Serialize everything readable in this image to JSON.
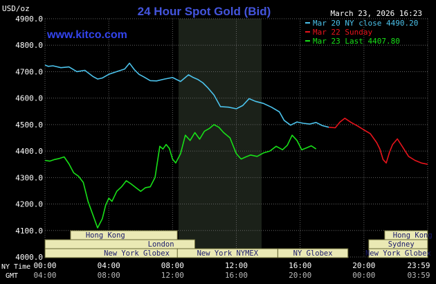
{
  "title": "24 Hour Spot Gold (Bid)",
  "brand": "www.kitco.com",
  "timestamp": "March 23, 2026 16:23",
  "units": "USD/oz",
  "colors": {
    "background": "#000000",
    "plot_bg": "#000000",
    "session_shade": "#1b2119",
    "grid": "#646464",
    "axis_text": "#ffffff",
    "title": "#4455dd",
    "brand": "#3344ee",
    "session_bar": "#eae9b4",
    "session_border": "#666633",
    "mar20": "#4cc3ec",
    "mar22": "#e8141c",
    "mar23": "#18e018"
  },
  "legend": [
    {
      "label": "Mar 20 NY close 4490.20",
      "color_key": "mar20"
    },
    {
      "label": "Mar 22 Sunday",
      "color_key": "mar22"
    },
    {
      "label": "Mar 23 Last 4407.80",
      "color_key": "mar23"
    }
  ],
  "axis": {
    "ny_time_label": "NY Time",
    "gmt_label": "GMT",
    "ny_ticks": [
      "00:00",
      "04:00",
      "08:00",
      "12:00",
      "16:00",
      "20:00",
      "23:59"
    ],
    "gmt_ticks": [
      "04:00",
      "08:00",
      "12:00",
      "16:00",
      "20:00",
      "00:00",
      "03:59"
    ]
  },
  "sessions": {
    "row1": [
      {
        "label": "Hong Kong",
        "span": "left"
      },
      {
        "label": "Hong Kong",
        "span": "right"
      }
    ],
    "row2": [
      {
        "label": "London",
        "span": "left"
      },
      {
        "label": "Sydney",
        "span": "right"
      }
    ],
    "row3": [
      {
        "label": "New York Globex",
        "span": "left"
      },
      {
        "label": "New York NYMEX",
        "span": "mid"
      },
      {
        "label": "NY Globex",
        "span": "mid2"
      },
      {
        "label": "New York Globex",
        "span": "right"
      }
    ]
  },
  "chart_data": {
    "type": "line",
    "title": "24 Hour Spot Gold (Bid)",
    "ylabel": "USD/oz",
    "ylim": [
      4000,
      4900
    ],
    "yticks": [
      4000,
      4100,
      4200,
      4300,
      4400,
      4500,
      4600,
      4700,
      4800,
      4900
    ],
    "xlim": [
      0,
      24
    ],
    "x_unit": "hours NY time",
    "grid": true,
    "legend_position": "top-right",
    "series": [
      {
        "name": "Mar 20 NY close 4490.20",
        "color_key": "mar20",
        "x": [
          0.0,
          0.2,
          0.5,
          1.0,
          1.5,
          2.0,
          2.5,
          3.0,
          3.3,
          3.6,
          4.0,
          4.5,
          5.0,
          5.3,
          5.6,
          5.9,
          6.2,
          6.6,
          7.0,
          7.5,
          8.0,
          8.5,
          9.0,
          9.3,
          9.6,
          9.9,
          10.2,
          10.6,
          11.0,
          11.5,
          12.0,
          12.4,
          12.8,
          13.2,
          13.7,
          14.2,
          14.7,
          15.0,
          15.4,
          15.8,
          16.2,
          16.6,
          17.0,
          17.4,
          17.8
        ],
        "y": [
          4725,
          4720,
          4722,
          4715,
          4718,
          4700,
          4705,
          4682,
          4672,
          4676,
          4690,
          4700,
          4710,
          4732,
          4708,
          4690,
          4680,
          4666,
          4665,
          4672,
          4678,
          4663,
          4688,
          4678,
          4670,
          4658,
          4640,
          4612,
          4568,
          4566,
          4560,
          4572,
          4598,
          4588,
          4580,
          4566,
          4548,
          4516,
          4498,
          4510,
          4505,
          4502,
          4508,
          4496,
          4490
        ]
      },
      {
        "name": "Mar 22 Sunday",
        "color_key": "mar22",
        "x": [
          17.8,
          18.2,
          18.5,
          18.8,
          19.2,
          19.6,
          20.0,
          20.4,
          20.8,
          21.0,
          21.2,
          21.4,
          21.6,
          21.8,
          22.1,
          22.4,
          22.8,
          23.2,
          23.6,
          24.0
        ],
        "y": [
          4490,
          4488,
          4510,
          4524,
          4508,
          4495,
          4480,
          4466,
          4432,
          4408,
          4368,
          4355,
          4395,
          4425,
          4446,
          4418,
          4380,
          4365,
          4355,
          4350
        ]
      },
      {
        "name": "Mar 23 Last 4407.80",
        "color_key": "mar23",
        "x": [
          0.0,
          0.3,
          0.6,
          0.9,
          1.2,
          1.5,
          1.8,
          2.1,
          2.4,
          2.7,
          3.0,
          3.3,
          3.6,
          3.8,
          4.0,
          4.2,
          4.5,
          4.8,
          5.1,
          5.4,
          5.7,
          6.0,
          6.3,
          6.6,
          6.9,
          7.2,
          7.4,
          7.6,
          7.8,
          8.0,
          8.2,
          8.5,
          8.8,
          9.1,
          9.4,
          9.7,
          10.0,
          10.3,
          10.6,
          10.9,
          11.2,
          11.6,
          12.0,
          12.3,
          12.6,
          12.9,
          13.3,
          13.7,
          14.1,
          14.5,
          14.9,
          15.2,
          15.5,
          15.8,
          16.1,
          16.4,
          16.7,
          17.0
        ],
        "y": [
          4365,
          4362,
          4368,
          4372,
          4378,
          4352,
          4318,
          4305,
          4282,
          4210,
          4160,
          4110,
          4145,
          4195,
          4222,
          4210,
          4248,
          4265,
          4288,
          4276,
          4262,
          4248,
          4262,
          4265,
          4300,
          4418,
          4408,
          4425,
          4410,
          4370,
          4355,
          4390,
          4460,
          4440,
          4470,
          4445,
          4475,
          4485,
          4500,
          4490,
          4470,
          4450,
          4390,
          4370,
          4378,
          4385,
          4380,
          4393,
          4400,
          4418,
          4405,
          4422,
          4460,
          4440,
          4405,
          4412,
          4420,
          4408
        ]
      }
    ]
  }
}
